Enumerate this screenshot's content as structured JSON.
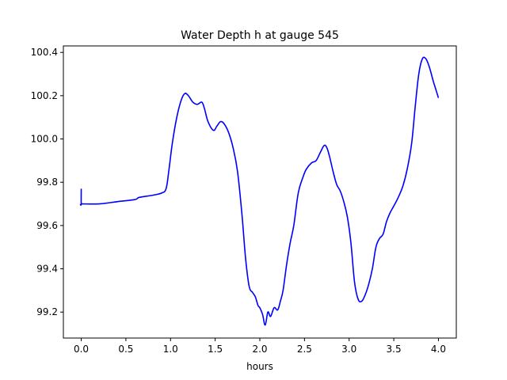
{
  "chart_data": {
    "type": "line",
    "title": "Water Depth h at gauge 545",
    "xlabel": "hours",
    "ylabel": "",
    "xlim": [
      -0.2,
      4.2
    ],
    "ylim": [
      99.08,
      100.43
    ],
    "xticks": [
      0.0,
      0.5,
      1.0,
      1.5,
      2.0,
      2.5,
      3.0,
      3.5,
      4.0
    ],
    "xtick_labels": [
      "0.0",
      "0.5",
      "1.0",
      "1.5",
      "2.0",
      "2.5",
      "3.0",
      "3.5",
      "4.0"
    ],
    "yticks": [
      99.2,
      99.4,
      99.6,
      99.8,
      100.0,
      100.2,
      100.4
    ],
    "ytick_labels": [
      "99.2",
      "99.4",
      "99.6",
      "99.8",
      "100.0",
      "100.2",
      "100.4"
    ],
    "grid": false,
    "legend": "none",
    "series": [
      {
        "color": "#0000ff",
        "x": [
          0.0,
          0.0,
          0.01,
          0.2,
          0.4,
          0.6,
          0.65,
          0.8,
          0.9,
          0.95,
          0.98,
          1.02,
          1.07,
          1.12,
          1.16,
          1.2,
          1.25,
          1.3,
          1.35,
          1.38,
          1.42,
          1.48,
          1.52,
          1.56,
          1.6,
          1.65,
          1.7,
          1.75,
          1.8,
          1.84,
          1.88,
          1.92,
          1.95,
          1.98,
          2.0,
          2.03,
          2.06,
          2.09,
          2.12,
          2.16,
          2.2,
          2.23,
          2.26,
          2.3,
          2.34,
          2.38,
          2.43,
          2.48,
          2.52,
          2.58,
          2.63,
          2.68,
          2.72,
          2.75,
          2.78,
          2.82,
          2.86,
          2.9,
          2.94,
          2.98,
          3.02,
          3.06,
          3.1,
          3.14,
          3.18,
          3.22,
          3.26,
          3.3,
          3.34,
          3.38,
          3.42,
          3.46,
          3.5,
          3.55,
          3.6,
          3.65,
          3.7,
          3.74,
          3.78,
          3.82,
          3.86,
          3.9,
          3.94,
          3.97,
          4.0
        ],
        "values": [
          99.77,
          99.7,
          99.7,
          99.7,
          99.71,
          99.72,
          99.73,
          99.74,
          99.75,
          99.77,
          99.85,
          99.98,
          100.1,
          100.18,
          100.21,
          100.2,
          100.17,
          100.16,
          100.17,
          100.14,
          100.08,
          100.04,
          100.06,
          100.08,
          100.07,
          100.03,
          99.96,
          99.85,
          99.65,
          99.45,
          99.32,
          99.29,
          99.27,
          99.23,
          99.22,
          99.19,
          99.14,
          99.2,
          99.18,
          99.22,
          99.21,
          99.25,
          99.3,
          99.42,
          99.52,
          99.6,
          99.75,
          99.82,
          99.86,
          99.89,
          99.9,
          99.94,
          99.97,
          99.96,
          99.92,
          99.85,
          99.79,
          99.76,
          99.71,
          99.64,
          99.52,
          99.34,
          99.26,
          99.25,
          99.28,
          99.33,
          99.4,
          99.5,
          99.54,
          99.56,
          99.62,
          99.66,
          99.69,
          99.73,
          99.78,
          99.86,
          99.98,
          100.15,
          100.3,
          100.37,
          100.37,
          100.33,
          100.27,
          100.23,
          100.19
        ]
      }
    ]
  }
}
